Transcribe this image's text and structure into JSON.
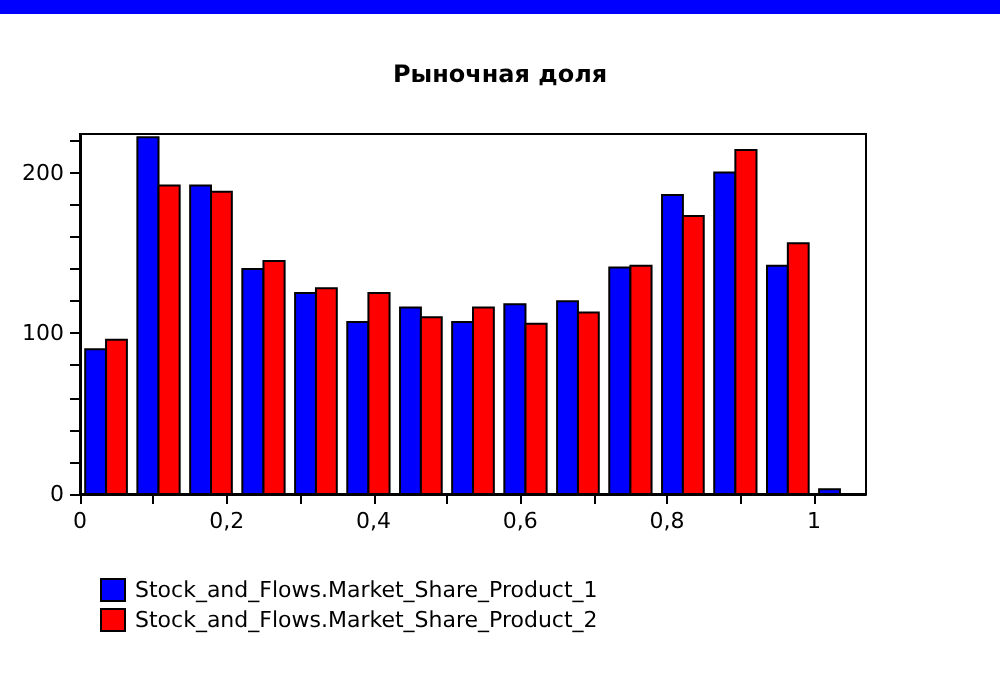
{
  "chart_data": {
    "type": "histogram",
    "title": "Рыночная доля",
    "bins": [
      0,
      0.071,
      0.143,
      0.214,
      0.286,
      0.357,
      0.429,
      0.5,
      0.571,
      0.643,
      0.714,
      0.786,
      0.857,
      0.929,
      1,
      1.071
    ],
    "series": [
      {
        "name": "Stock_and_Flows.Market_Share_Product_1",
        "color": "#0000ff",
        "values": [
          90,
          222,
          192,
          140,
          125,
          107,
          116,
          107,
          118,
          120,
          141,
          186,
          200,
          142,
          3
        ]
      },
      {
        "name": "Stock_and_Flows.Market_Share_Product_2",
        "color": "#ff0000",
        "values": [
          96,
          192,
          188,
          145,
          128,
          125,
          110,
          116,
          106,
          113,
          142,
          173,
          214,
          156,
          null
        ]
      }
    ],
    "xlim": [
      0,
      1.071
    ],
    "xticks": [
      0,
      {
        "value": 0.1,
        "label": null
      },
      {
        "value": 0.2,
        "label": "0,2"
      },
      {
        "value": 0.3,
        "label": null
      },
      {
        "value": 0.4,
        "label": "0,4"
      },
      {
        "value": 0.5,
        "label": null
      },
      {
        "value": 0.6,
        "label": "0,6"
      },
      {
        "value": 0.7,
        "label": null
      },
      {
        "value": 0.8,
        "label": "0,8"
      },
      {
        "value": 0.9,
        "label": null
      },
      1
    ],
    "ylim": [
      0,
      224
    ],
    "yticks": [
      0,
      {
        "value": 20,
        "label": null
      },
      {
        "value": 40,
        "label": null
      },
      {
        "value": 60,
        "label": null
      },
      {
        "value": 80,
        "label": null
      },
      100,
      {
        "value": 120,
        "label": null
      },
      {
        "value": 140,
        "label": null
      },
      {
        "value": 160,
        "label": null
      },
      {
        "value": 180,
        "label": null
      },
      200,
      {
        "value": 220,
        "label": null
      }
    ],
    "grid": false,
    "legend": "bottom left"
  }
}
